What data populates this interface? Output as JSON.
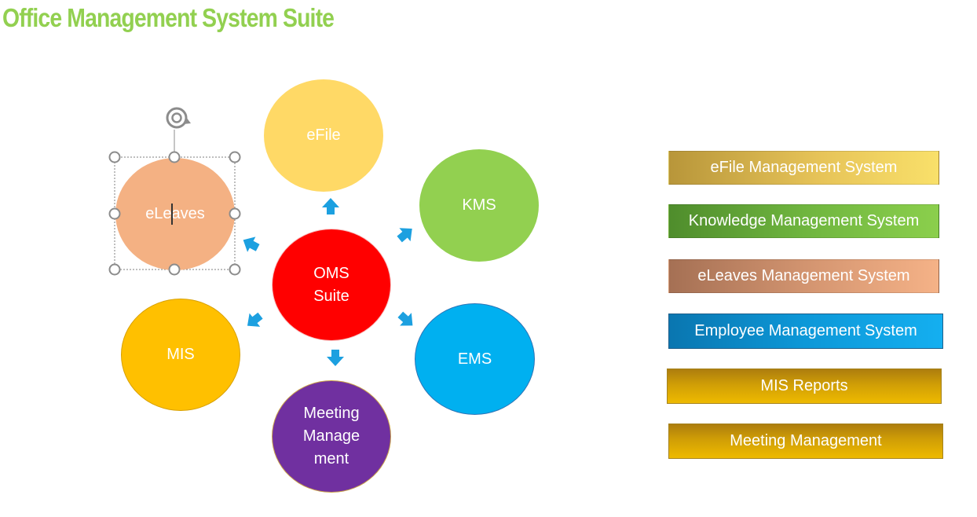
{
  "page": {
    "title": "Office Management System Suite"
  },
  "colors": {
    "title": "#92d050",
    "arrow": "#1ca0e0",
    "efile": "#ffd966",
    "kms": "#92d050",
    "eleaves": "#f4b183",
    "oms": "#ff0000",
    "mis": "#ffc000",
    "ems": "#00b0f0",
    "meeting": "#7030a0"
  },
  "diagram": {
    "center": {
      "lines": [
        "OMS",
        "Suite"
      ]
    },
    "nodes": {
      "efile": {
        "label": "eFile"
      },
      "kms": {
        "label": "KMS"
      },
      "eleaves": {
        "label": "eLeaves",
        "selected": true
      },
      "mis": {
        "label": "MIS"
      },
      "ems": {
        "label": "EMS"
      },
      "meeting": {
        "lines": [
          "Meeting",
          "Manage",
          "ment"
        ]
      }
    },
    "selection_icons": [
      "rotate-handle-icon",
      "resize-handle-icon"
    ]
  },
  "legend": {
    "items": [
      {
        "key": "efile",
        "label": "eFile Management System"
      },
      {
        "key": "kms",
        "label": "Knowledge Management System"
      },
      {
        "key": "eleaves",
        "label": "eLeaves Management System"
      },
      {
        "key": "ems",
        "label": "Employee Management System"
      },
      {
        "key": "mis",
        "label": "MIS Reports"
      },
      {
        "key": "meeting",
        "label": "Meeting Management"
      }
    ]
  }
}
